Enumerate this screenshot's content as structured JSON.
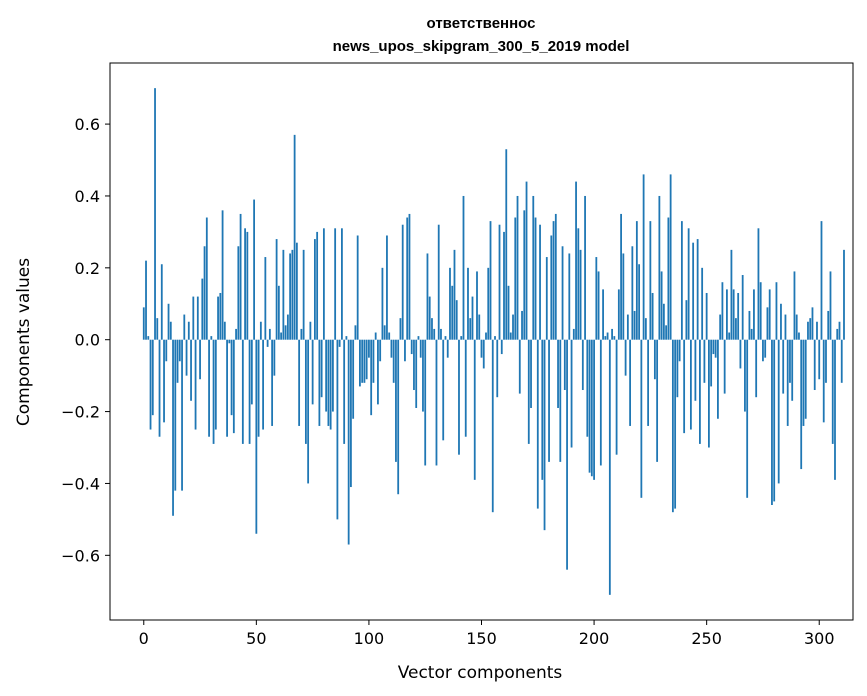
{
  "chart_data": {
    "type": "bar",
    "title_line1": "ответственнос",
    "title_line2": "news_upos_skipgram_300_5_2019 model",
    "xlabel": "Vector components",
    "ylabel": "Components values",
    "xlim": [
      -15,
      315
    ],
    "ylim": [
      -0.78,
      0.77
    ],
    "xticks": [
      0,
      50,
      100,
      150,
      200,
      250,
      300
    ],
    "yticks": [
      -0.6,
      -0.4,
      -0.2,
      0.0,
      0.2,
      0.4,
      0.6
    ],
    "ytick_labels": [
      "−0.6",
      "−0.4",
      "−0.2",
      "0.0",
      "0.2",
      "0.4",
      "0.6"
    ],
    "xtick_labels": [
      "0",
      "50",
      "100",
      "150",
      "200",
      "250",
      "300"
    ],
    "bar_color": "#1f77b4",
    "grid": false,
    "values": [
      0.09,
      0.22,
      0.01,
      -0.25,
      -0.21,
      0.7,
      0.06,
      -0.27,
      0.21,
      -0.23,
      -0.06,
      0.1,
      0.05,
      -0.49,
      -0.42,
      -0.12,
      -0.06,
      -0.42,
      0.07,
      -0.1,
      0.05,
      -0.17,
      0.12,
      -0.25,
      0.12,
      -0.11,
      0.17,
      0.26,
      0.34,
      -0.27,
      0.01,
      -0.29,
      -0.25,
      0.12,
      0.13,
      0.36,
      0.05,
      -0.27,
      -0.01,
      -0.21,
      -0.26,
      0.03,
      0.26,
      0.35,
      -0.29,
      0.31,
      0.3,
      -0.29,
      -0.18,
      0.39,
      -0.54,
      -0.27,
      0.05,
      -0.25,
      0.23,
      -0.02,
      0.03,
      -0.24,
      -0.1,
      0.28,
      0.15,
      0.02,
      0.25,
      0.04,
      0.07,
      0.24,
      0.25,
      0.57,
      0.27,
      -0.24,
      0.03,
      0.25,
      -0.29,
      -0.4,
      0.05,
      -0.18,
      0.28,
      0.3,
      -0.24,
      -0.16,
      0.31,
      -0.2,
      -0.24,
      -0.25,
      -0.2,
      0.31,
      -0.5,
      -0.02,
      0.31,
      -0.29,
      0.01,
      -0.57,
      -0.41,
      -0.22,
      0.04,
      0.29,
      -0.13,
      -0.12,
      -0.12,
      -0.11,
      -0.05,
      -0.21,
      -0.12,
      0.02,
      -0.18,
      -0.06,
      0.2,
      0.04,
      0.29,
      0.02,
      -0.05,
      -0.12,
      -0.34,
      -0.43,
      0.06,
      0.32,
      -0.06,
      0.34,
      0.35,
      -0.04,
      -0.14,
      -0.19,
      0.01,
      -0.05,
      -0.2,
      -0.35,
      0.24,
      0.12,
      0.06,
      0.03,
      -0.35,
      0.32,
      0.03,
      -0.28,
      0.01,
      -0.05,
      0.2,
      0.15,
      0.25,
      0.11,
      -0.32,
      0.01,
      0.4,
      -0.27,
      0.2,
      0.06,
      0.12,
      -0.39,
      0.19,
      0.07,
      -0.05,
      -0.08,
      0.02,
      0.2,
      0.33,
      -0.48,
      0.01,
      -0.16,
      0.32,
      -0.04,
      0.3,
      0.53,
      0.15,
      0.02,
      0.07,
      0.34,
      0.4,
      -0.15,
      0.08,
      0.36,
      0.44,
      -0.29,
      -0.19,
      0.4,
      0.34,
      -0.47,
      0.32,
      -0.39,
      -0.53,
      0.23,
      -0.34,
      0.29,
      0.33,
      0.35,
      -0.19,
      -0.34,
      0.26,
      -0.14,
      -0.64,
      0.24,
      -0.3,
      0.03,
      0.44,
      0.31,
      0.25,
      -0.14,
      0.4,
      -0.27,
      -0.37,
      -0.38,
      -0.39,
      0.23,
      0.19,
      -0.35,
      0.14,
      0.01,
      0.02,
      -0.71,
      0.03,
      0.01,
      -0.32,
      0.14,
      0.35,
      0.24,
      -0.1,
      0.07,
      -0.24,
      0.26,
      0.08,
      0.33,
      0.21,
      -0.44,
      0.46,
      0.06,
      -0.24,
      0.33,
      0.13,
      -0.11,
      -0.34,
      0.4,
      0.19,
      0.1,
      0.04,
      0.34,
      0.46,
      -0.48,
      -0.47,
      -0.16,
      -0.06,
      0.33,
      -0.26,
      0.11,
      0.31,
      -0.25,
      0.27,
      -0.17,
      0.28,
      -0.29,
      0.2,
      -0.12,
      0.13,
      -0.3,
      -0.13,
      -0.04,
      -0.05,
      -0.22,
      0.07,
      0.16,
      -0.15,
      0.14,
      0.02,
      0.25,
      0.14,
      0.06,
      0.13,
      -0.08,
      0.18,
      -0.2,
      -0.44,
      0.08,
      0.03,
      0.14,
      -0.16,
      0.31,
      0.16,
      -0.06,
      -0.05,
      0.09,
      0.14,
      -0.46,
      -0.45,
      0.16,
      -0.4,
      0.1,
      -0.15,
      0.07,
      -0.24,
      -0.12,
      -0.17,
      0.19,
      0.07,
      0.02,
      -0.36,
      -0.24,
      -0.22,
      0.05,
      0.06,
      0.09,
      -0.14,
      0.05,
      -0.11,
      0.33,
      -0.23,
      -0.12,
      0.08,
      0.19,
      -0.29,
      -0.39,
      0.03,
      0.05,
      -0.12,
      0.25
    ]
  }
}
